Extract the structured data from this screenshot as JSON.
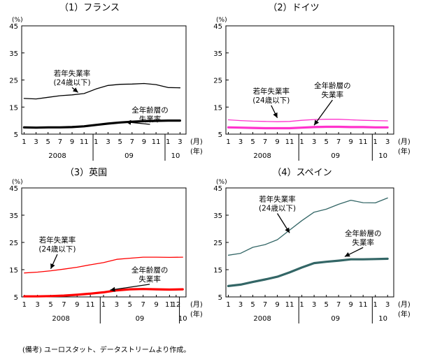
{
  "note": "(備考) ユーロスタット、データストリームより作成。",
  "chart_data": [
    {
      "type": "line",
      "title": "（1）フランス",
      "y_unit": "(%)",
      "ylim": [
        5,
        45
      ],
      "yticks": [
        5,
        15,
        25,
        35,
        45
      ],
      "x_months": [
        "1",
        "3",
        "5",
        "7",
        "9",
        "11",
        "1",
        "3",
        "5",
        "7",
        "9",
        "11",
        "1",
        "3"
      ],
      "x_month_values": [
        1,
        3,
        5,
        7,
        9,
        11,
        13,
        15,
        17,
        19,
        21,
        23,
        25,
        27
      ],
      "x_unit_month": "(月)",
      "x_unit_year": "(年)",
      "years": [
        {
          "label": "2008",
          "from": 1,
          "to": 12
        },
        {
          "label": "09",
          "from": 13,
          "to": 24
        },
        {
          "label": "10",
          "from": 25,
          "to": 27
        }
      ],
      "series": [
        {
          "name": "若年失業率\n(24歳以下)",
          "color": "#000000",
          "width": 1.3,
          "x": [
            1,
            3,
            5,
            7,
            9,
            11,
            13,
            15,
            17,
            19,
            21,
            23,
            25,
            27
          ],
          "values": [
            18.2,
            18.0,
            18.6,
            19.2,
            19.5,
            20.0,
            21.7,
            23.0,
            23.4,
            23.5,
            23.7,
            23.3,
            22.2,
            22.1
          ]
        },
        {
          "name": "全年齢層の\n失業率",
          "color": "#000000",
          "width": 3.2,
          "x": [
            1,
            3,
            5,
            7,
            9,
            11,
            13,
            15,
            17,
            19,
            21,
            23,
            25,
            27
          ],
          "values": [
            7.5,
            7.4,
            7.5,
            7.5,
            7.6,
            7.9,
            8.4,
            8.9,
            9.3,
            9.6,
            9.8,
            9.9,
            10.0,
            10.0
          ]
        }
      ],
      "annotations": [
        {
          "text": [
            "若年失業率",
            "(24歳以下)"
          ],
          "x": 9,
          "y": 26.6,
          "ax": 10,
          "ay": 20.4
        },
        {
          "text": [
            "全年齢層の",
            "失業率"
          ],
          "x": 22,
          "y": 13.0,
          "ax": 18,
          "ay": 9.5
        }
      ]
    },
    {
      "type": "line",
      "title": "（2）ドイツ",
      "y_unit": "(%)",
      "ylim": [
        5,
        45
      ],
      "yticks": [
        5,
        15,
        25,
        35,
        45
      ],
      "x_months": [
        "1",
        "3",
        "5",
        "7",
        "9",
        "11",
        "1",
        "3",
        "5",
        "7",
        "9",
        "11",
        "1",
        "3"
      ],
      "x_month_values": [
        1,
        3,
        5,
        7,
        9,
        11,
        13,
        15,
        17,
        19,
        21,
        23,
        25,
        27
      ],
      "x_unit_month": "(月)",
      "x_unit_year": "(年)",
      "years": [
        {
          "label": "2008",
          "from": 1,
          "to": 12
        },
        {
          "label": "09",
          "from": 13,
          "to": 24
        },
        {
          "label": "10",
          "from": 25,
          "to": 27
        }
      ],
      "series": [
        {
          "name": "若年失業率\n(24歳以下)",
          "color": "#ff33cc",
          "width": 1.3,
          "x": [
            1,
            3,
            5,
            7,
            9,
            11,
            13,
            15,
            17,
            19,
            21,
            23,
            25,
            27
          ],
          "values": [
            10.3,
            10.0,
            9.8,
            9.7,
            9.6,
            9.7,
            10.1,
            10.4,
            10.5,
            10.5,
            10.3,
            10.1,
            10.0,
            9.9
          ]
        },
        {
          "name": "全年齢層の\n失業率",
          "color": "#ff33cc",
          "width": 3.2,
          "x": [
            1,
            3,
            5,
            7,
            9,
            11,
            13,
            15,
            17,
            19,
            21,
            23,
            25,
            27
          ],
          "values": [
            7.5,
            7.4,
            7.3,
            7.2,
            7.2,
            7.2,
            7.4,
            7.6,
            7.7,
            7.7,
            7.6,
            7.6,
            7.5,
            7.5
          ]
        }
      ],
      "annotations": [
        {
          "text": [
            "若年失業率",
            "(24歳以下)"
          ],
          "x": 8,
          "y": 20.0,
          "ax": 9,
          "ay": 11.0
        },
        {
          "text": [
            "全年齢層の",
            "失業率"
          ],
          "x": 18,
          "y": 22.0,
          "ax": 15,
          "ay": 8.3
        }
      ]
    },
    {
      "type": "line",
      "title": "（3）英国",
      "y_unit": "(%)",
      "ylim": [
        5,
        45
      ],
      "yticks": [
        5,
        15,
        25,
        35,
        45
      ],
      "x_months": [
        "1",
        "3",
        "5",
        "7",
        "9",
        "11",
        "1",
        "3",
        "5",
        "7",
        "9",
        "11",
        "12"
      ],
      "x_month_values": [
        1,
        3,
        5,
        7,
        9,
        11,
        13,
        15,
        17,
        19,
        21,
        23,
        24
      ],
      "x_unit_month": "(月)",
      "x_unit_year": "(年)",
      "years": [
        {
          "label": "2008",
          "from": 1,
          "to": 12
        },
        {
          "label": "09",
          "from": 13,
          "to": 24
        },
        {
          "label": "10",
          "from": 25,
          "to": 25
        }
      ],
      "series": [
        {
          "name": "若年失業率\n(24歳以下)",
          "color": "#ff0000",
          "width": 1.3,
          "x": [
            1,
            3,
            5,
            7,
            9,
            11,
            13,
            15,
            17,
            19,
            21,
            23,
            25
          ],
          "values": [
            13.8,
            14.1,
            14.6,
            15.2,
            15.9,
            16.8,
            17.6,
            18.8,
            19.2,
            19.6,
            19.6,
            19.5,
            19.6
          ]
        },
        {
          "name": "全年齢層の\n失業率",
          "color": "#ff0000",
          "width": 3.2,
          "x": [
            1,
            3,
            5,
            7,
            9,
            11,
            13,
            15,
            17,
            19,
            21,
            23,
            25
          ],
          "values": [
            5.2,
            5.2,
            5.3,
            5.5,
            5.8,
            6.2,
            6.7,
            7.4,
            7.8,
            7.9,
            7.8,
            7.7,
            7.8
          ]
        }
      ],
      "annotations": [
        {
          "text": [
            "若年失業率",
            "(24歳以下)"
          ],
          "x": 6,
          "y": 25.0,
          "ax": 5,
          "ay": 15.3
        },
        {
          "text": [
            "全年齢層の",
            "失業率"
          ],
          "x": 20,
          "y": 14.0,
          "ax": 14,
          "ay": 7.5
        }
      ]
    },
    {
      "type": "line",
      "title": "（4）スペイン",
      "y_unit": "(%)",
      "ylim": [
        5,
        45
      ],
      "yticks": [
        5,
        15,
        25,
        35,
        45
      ],
      "x_months": [
        "1",
        "3",
        "5",
        "7",
        "9",
        "11",
        "1",
        "3",
        "5",
        "7",
        "9",
        "11",
        "1",
        "3"
      ],
      "x_month_values": [
        1,
        3,
        5,
        7,
        9,
        11,
        13,
        15,
        17,
        19,
        21,
        23,
        25,
        27
      ],
      "x_unit_month": "(月)",
      "x_unit_year": "(年)",
      "years": [
        {
          "label": "2008",
          "from": 1,
          "to": 12
        },
        {
          "label": "09",
          "from": 13,
          "to": 24
        },
        {
          "label": "10",
          "from": 25,
          "to": 27
        }
      ],
      "series": [
        {
          "name": "若年失業率\n(24歳以下)",
          "color": "#336666",
          "width": 1.3,
          "x": [
            1,
            3,
            5,
            7,
            9,
            11,
            13,
            15,
            17,
            19,
            21,
            23,
            25,
            27
          ],
          "values": [
            20.3,
            21.0,
            23.2,
            24.2,
            26.0,
            29.5,
            33.0,
            36.1,
            37.2,
            39.0,
            40.5,
            39.6,
            39.5,
            41.3
          ]
        },
        {
          "name": "全年齢層の\n失業率",
          "color": "#336666",
          "width": 3.2,
          "x": [
            1,
            3,
            5,
            7,
            9,
            11,
            13,
            15,
            17,
            19,
            21,
            23,
            25,
            27
          ],
          "values": [
            9.0,
            9.5,
            10.5,
            11.4,
            12.4,
            14.0,
            15.8,
            17.4,
            17.9,
            18.3,
            18.8,
            18.8,
            18.9,
            19.0
          ]
        }
      ],
      "annotations": [
        {
          "text": [
            "若年失業率",
            "(24歳以下)"
          ],
          "x": 9,
          "y": 40.0,
          "ax": 11,
          "ay": 28.5
        },
        {
          "text": [
            "全年齢層の",
            "失業率"
          ],
          "x": 23,
          "y": 27.5,
          "ax": 20,
          "ay": 19.8
        }
      ]
    }
  ]
}
